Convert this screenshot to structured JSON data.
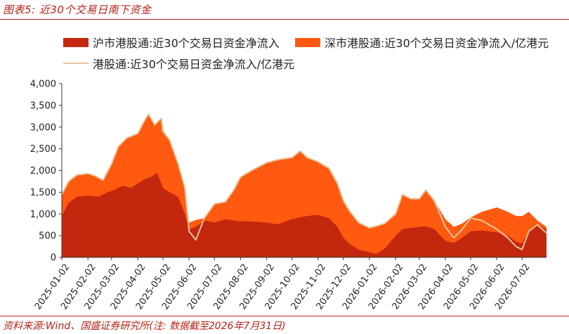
{
  "header": {
    "title": "图表5: 近30个交易日南下资金"
  },
  "footer": {
    "source": "资料来源:Wind、国盛证券研究所(注: 数据截至2026年7月31日)"
  },
  "colors": {
    "sh": "#c3280f",
    "sz": "#ff5a10",
    "total": "#e8c49a",
    "accent": "#b32418"
  },
  "chart_data": {
    "type": "area",
    "title": "",
    "xlabel": "",
    "ylabel": "",
    "ylim": [
      0,
      4000
    ],
    "yticks": [
      0,
      500,
      1000,
      1500,
      2000,
      2500,
      3000,
      3500,
      4000
    ],
    "ytick_labels": [
      "0",
      "500",
      "1,000",
      "1,500",
      "2,000",
      "2,500",
      "3,000",
      "3,500",
      "4,000"
    ],
    "xticks": [
      "2025-01-02",
      "2025-02-02",
      "2025-03-02",
      "2025-04-02",
      "2025-05-02",
      "2025-06-02",
      "2025-07-02",
      "2025-08-02",
      "2025-09-02",
      "2025-10-02",
      "2025-11-02",
      "2025-12-02",
      "2026-01-02",
      "2026-02-02",
      "2026-03-02",
      "2026-04-02",
      "2026-05-02",
      "2026-06-02",
      "2026-07-02"
    ],
    "x_range": [
      "2025-01-02",
      "2026-07-31"
    ],
    "legend_position": "top",
    "grid": false,
    "series": [
      {
        "name": "沪市港股通:近30个交易日资金净流入",
        "kind": "area",
        "points": [
          [
            "2025-01-02",
            950
          ],
          [
            "2025-01-10",
            1250
          ],
          [
            "2025-01-20",
            1400
          ],
          [
            "2025-02-02",
            1420
          ],
          [
            "2025-02-15",
            1400
          ],
          [
            "2025-02-25",
            1500
          ],
          [
            "2025-03-05",
            1550
          ],
          [
            "2025-03-15",
            1650
          ],
          [
            "2025-03-25",
            1600
          ],
          [
            "2025-04-02",
            1700
          ],
          [
            "2025-04-10",
            1800
          ],
          [
            "2025-04-18",
            1850
          ],
          [
            "2025-04-25",
            1950
          ],
          [
            "2025-05-02",
            1600
          ],
          [
            "2025-05-10",
            1500
          ],
          [
            "2025-05-20",
            1400
          ],
          [
            "2025-05-28",
            1000
          ],
          [
            "2025-06-02",
            650
          ],
          [
            "2025-06-10",
            700
          ],
          [
            "2025-06-20",
            850
          ],
          [
            "2025-07-02",
            800
          ],
          [
            "2025-07-15",
            880
          ],
          [
            "2025-08-02",
            830
          ],
          [
            "2025-08-15",
            830
          ],
          [
            "2025-09-02",
            800
          ],
          [
            "2025-09-15",
            760
          ],
          [
            "2025-10-02",
            880
          ],
          [
            "2025-10-15",
            940
          ],
          [
            "2025-11-02",
            980
          ],
          [
            "2025-11-15",
            900
          ],
          [
            "2025-11-25",
            700
          ],
          [
            "2025-12-02",
            450
          ],
          [
            "2025-12-10",
            300
          ],
          [
            "2025-12-20",
            180
          ],
          [
            "2026-01-02",
            120
          ],
          [
            "2026-01-10",
            80
          ],
          [
            "2026-01-20",
            200
          ],
          [
            "2026-02-02",
            500
          ],
          [
            "2026-02-10",
            650
          ],
          [
            "2026-02-20",
            680
          ],
          [
            "2026-03-02",
            700
          ],
          [
            "2026-03-10",
            720
          ],
          [
            "2026-03-20",
            650
          ],
          [
            "2026-04-02",
            380
          ],
          [
            "2026-04-12",
            330
          ],
          [
            "2026-04-22",
            450
          ],
          [
            "2026-05-02",
            600
          ],
          [
            "2026-05-15",
            620
          ],
          [
            "2026-06-02",
            580
          ],
          [
            "2026-06-15",
            500
          ],
          [
            "2026-06-25",
            360
          ],
          [
            "2026-07-02",
            320
          ],
          [
            "2026-07-10",
            600
          ],
          [
            "2026-07-20",
            750
          ],
          [
            "2026-07-31",
            640
          ]
        ]
      },
      {
        "name": "深市港股通:近30个交易日资金净流入/亿港元",
        "kind": "area",
        "points": [
          [
            "2025-01-02",
            1450
          ],
          [
            "2025-01-10",
            1750
          ],
          [
            "2025-01-20",
            1900
          ],
          [
            "2025-02-02",
            1930
          ],
          [
            "2025-02-10",
            1880
          ],
          [
            "2025-02-20",
            1780
          ],
          [
            "2025-03-02",
            2150
          ],
          [
            "2025-03-10",
            2550
          ],
          [
            "2025-03-20",
            2750
          ],
          [
            "2025-04-02",
            2850
          ],
          [
            "2025-04-10",
            3150
          ],
          [
            "2025-04-15",
            3300
          ],
          [
            "2025-04-22",
            3050
          ],
          [
            "2025-04-30",
            3200
          ],
          [
            "2025-05-02",
            2900
          ],
          [
            "2025-05-10",
            2700
          ],
          [
            "2025-05-20",
            2150
          ],
          [
            "2025-05-28",
            1600
          ],
          [
            "2025-06-02",
            800
          ],
          [
            "2025-06-10",
            860
          ],
          [
            "2025-06-20",
            900
          ],
          [
            "2025-07-02",
            1230
          ],
          [
            "2025-07-15",
            1280
          ],
          [
            "2025-07-25",
            1550
          ],
          [
            "2025-08-02",
            1850
          ],
          [
            "2025-08-15",
            2000
          ],
          [
            "2025-09-02",
            2180
          ],
          [
            "2025-09-15",
            2250
          ],
          [
            "2025-10-02",
            2300
          ],
          [
            "2025-10-12",
            2450
          ],
          [
            "2025-10-20",
            2300
          ],
          [
            "2025-11-02",
            2200
          ],
          [
            "2025-11-15",
            2050
          ],
          [
            "2025-11-25",
            1700
          ],
          [
            "2025-12-02",
            1300
          ],
          [
            "2025-12-10",
            1050
          ],
          [
            "2025-12-20",
            800
          ],
          [
            "2026-01-02",
            680
          ],
          [
            "2026-01-10",
            720
          ],
          [
            "2026-01-20",
            780
          ],
          [
            "2026-02-02",
            1000
          ],
          [
            "2026-02-10",
            1450
          ],
          [
            "2026-02-20",
            1350
          ],
          [
            "2026-03-02",
            1350
          ],
          [
            "2026-03-10",
            1550
          ],
          [
            "2026-03-20",
            1300
          ],
          [
            "2026-04-02",
            880
          ],
          [
            "2026-04-12",
            700
          ],
          [
            "2026-04-22",
            780
          ],
          [
            "2026-05-02",
            920
          ],
          [
            "2026-05-15",
            1050
          ],
          [
            "2026-06-02",
            1150
          ],
          [
            "2026-06-15",
            1050
          ],
          [
            "2026-06-25",
            950
          ],
          [
            "2026-07-02",
            950
          ],
          [
            "2026-07-10",
            1050
          ],
          [
            "2026-07-20",
            850
          ],
          [
            "2026-07-31",
            700
          ]
        ]
      },
      {
        "name": "港股通:近30个交易日资金净流入/亿港元",
        "kind": "line",
        "points": [
          [
            "2025-01-02",
            1450
          ],
          [
            "2025-01-10",
            1750
          ],
          [
            "2025-01-20",
            1900
          ],
          [
            "2025-02-02",
            1930
          ],
          [
            "2025-02-10",
            1880
          ],
          [
            "2025-02-20",
            1780
          ],
          [
            "2025-03-02",
            2150
          ],
          [
            "2025-03-10",
            2550
          ],
          [
            "2025-03-20",
            2750
          ],
          [
            "2025-04-02",
            2850
          ],
          [
            "2025-04-10",
            3150
          ],
          [
            "2025-04-15",
            3300
          ],
          [
            "2025-04-22",
            3050
          ],
          [
            "2025-04-30",
            3200
          ],
          [
            "2025-05-02",
            2900
          ],
          [
            "2025-05-10",
            2700
          ],
          [
            "2025-05-20",
            2150
          ],
          [
            "2025-05-28",
            1600
          ],
          [
            "2025-06-02",
            600
          ],
          [
            "2025-06-10",
            400
          ],
          [
            "2025-06-20",
            900
          ],
          [
            "2025-07-02",
            1230
          ],
          [
            "2025-07-15",
            1280
          ],
          [
            "2025-07-25",
            1550
          ],
          [
            "2025-08-02",
            1850
          ],
          [
            "2025-08-15",
            2000
          ],
          [
            "2025-09-02",
            2180
          ],
          [
            "2025-09-15",
            2250
          ],
          [
            "2025-10-02",
            2300
          ],
          [
            "2025-10-12",
            2450
          ],
          [
            "2025-10-20",
            2300
          ],
          [
            "2025-11-02",
            2200
          ],
          [
            "2025-11-15",
            2050
          ],
          [
            "2025-11-25",
            1700
          ],
          [
            "2025-12-02",
            1300
          ],
          [
            "2025-12-10",
            1050
          ],
          [
            "2025-12-20",
            800
          ],
          [
            "2026-01-02",
            680
          ],
          [
            "2026-01-10",
            720
          ],
          [
            "2026-01-20",
            780
          ],
          [
            "2026-02-02",
            1000
          ],
          [
            "2026-02-10",
            1450
          ],
          [
            "2026-02-20",
            1350
          ],
          [
            "2026-03-02",
            1350
          ],
          [
            "2026-03-10",
            1550
          ],
          [
            "2026-03-20",
            1300
          ],
          [
            "2026-04-02",
            700
          ],
          [
            "2026-04-12",
            450
          ],
          [
            "2026-04-22",
            650
          ],
          [
            "2026-05-02",
            900
          ],
          [
            "2026-05-15",
            850
          ],
          [
            "2026-06-02",
            650
          ],
          [
            "2026-06-15",
            450
          ],
          [
            "2026-06-25",
            250
          ],
          [
            "2026-07-02",
            180
          ],
          [
            "2026-07-10",
            600
          ],
          [
            "2026-07-20",
            750
          ],
          [
            "2026-07-31",
            560
          ]
        ]
      }
    ]
  }
}
